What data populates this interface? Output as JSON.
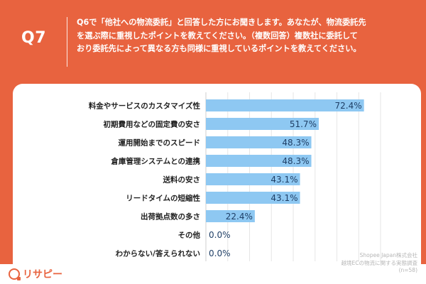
{
  "question": {
    "label": "Q7",
    "lines": [
      "Q6で「他社への物流委託」と回答した方にお聞きします。あなたが、物流委託先",
      "を選ぶ際に重視したポイントを教えてください。（複数回答）複数社に委託して",
      "おり委託先によって異なる方も同様に重視しているポイントを教えてください。"
    ]
  },
  "chart_data": {
    "type": "bar",
    "orientation": "horizontal",
    "categories": [
      "料金やサービスのカスタマイズ性",
      "初期費用などの固定費の安さ",
      "運用開始までのスピード",
      "倉庫管理システムとの連携",
      "送料の安さ",
      "リードタイムの短縮性",
      "出荷拠点数の多さ",
      "その他",
      "わからない/答えられない"
    ],
    "values": [
      72.4,
      51.7,
      48.3,
      48.3,
      43.1,
      43.1,
      22.4,
      0.0,
      0.0
    ],
    "value_labels": [
      "72.4%",
      "51.7%",
      "48.3%",
      "48.3%",
      "43.1%",
      "43.1%",
      "22.4%",
      "0.0%",
      "0.0%"
    ],
    "xlim": [
      0,
      80
    ],
    "grid": true,
    "bar_color": "#8ec8f2"
  },
  "source": {
    "lines": [
      "Shopee Japan株式会社",
      "越境ECの物流に関する実態調査",
      "(n=58)"
    ]
  },
  "brand": {
    "name": "リサピー",
    "accent": "#e8633f"
  }
}
